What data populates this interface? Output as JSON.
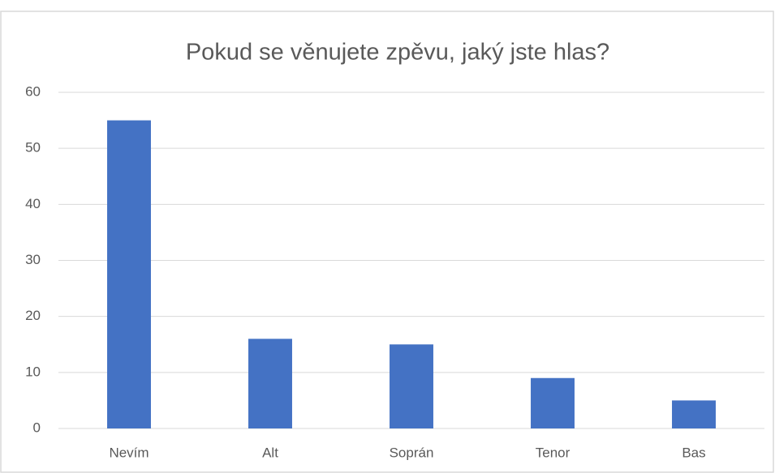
{
  "chart_data": {
    "type": "bar",
    "title": "Pokud se věnujete zpěvu, jaký jste hlas?",
    "categories": [
      "Nevím",
      "Alt",
      "Soprán",
      "Tenor",
      "Bas"
    ],
    "values": [
      55,
      16,
      15,
      9,
      5
    ],
    "color": "#4472c4",
    "ylim": [
      0,
      60
    ],
    "yticks": [
      0,
      10,
      20,
      30,
      40,
      50,
      60
    ],
    "grid": true
  }
}
